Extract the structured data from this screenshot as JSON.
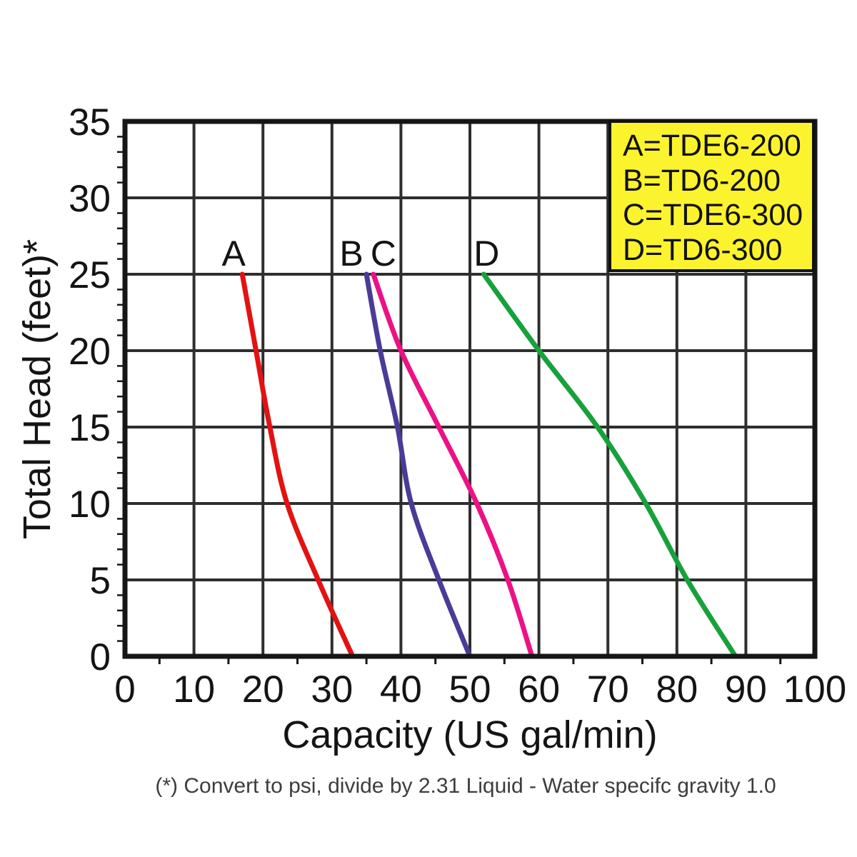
{
  "figure": {
    "footnote": "(*) Convert to psi, divide by 2.31  Liquid - Water specifc gravity 1.0"
  },
  "chart_data": {
    "type": "line",
    "title": "",
    "xlabel": "Capacity (US gal/min)",
    "ylabel": "Total Head (feet)*",
    "xlim": [
      0,
      100
    ],
    "ylim": [
      0,
      35
    ],
    "xticks": [
      0,
      10,
      20,
      30,
      40,
      50,
      60,
      70,
      80,
      90,
      100
    ],
    "yticks": [
      0,
      5,
      10,
      15,
      20,
      25,
      30,
      35
    ],
    "x_minor_step": 5,
    "y_minor_step": 1,
    "grid": true,
    "legend_position": "top-right",
    "legend": {
      "background": "#fcf32f",
      "border": "#111111",
      "entries": [
        {
          "key": "A",
          "label": "A=TDE6-200"
        },
        {
          "key": "B",
          "label": "B=TD6-200"
        },
        {
          "key": "C",
          "label": "C=TDE6-300"
        },
        {
          "key": "D",
          "label": "D=TD6-300"
        }
      ]
    },
    "series": [
      {
        "name": "A",
        "model": "TDE6-200",
        "color": "#e31212",
        "points": [
          [
            17,
            25
          ],
          [
            19,
            20
          ],
          [
            21,
            15
          ],
          [
            23.5,
            10
          ],
          [
            28,
            5
          ],
          [
            33,
            0
          ]
        ],
        "label_dx": -12
      },
      {
        "name": "B",
        "model": "TD6-200",
        "color": "#4a3b97",
        "points": [
          [
            35,
            25
          ],
          [
            37,
            20
          ],
          [
            39.5,
            15
          ],
          [
            41.5,
            10
          ],
          [
            45.5,
            5
          ],
          [
            50,
            0
          ]
        ],
        "label_dx": -21
      },
      {
        "name": "C",
        "model": "TDE6-300",
        "color": "#ec1185",
        "points": [
          [
            36,
            25
          ],
          [
            40,
            20
          ],
          [
            45.5,
            15
          ],
          [
            51,
            10
          ],
          [
            55.5,
            5
          ],
          [
            59,
            0
          ]
        ],
        "label_dx": 14
      },
      {
        "name": "D",
        "model": "TD6-300",
        "color": "#17a13b",
        "points": [
          [
            52,
            25
          ],
          [
            60,
            20
          ],
          [
            68.5,
            15
          ],
          [
            75.5,
            10
          ],
          [
            81.5,
            5
          ],
          [
            88.5,
            0
          ]
        ],
        "label_dx": 4
      }
    ],
    "colors": {
      "grid": "#2e2e2e",
      "border": "#161616",
      "axis_text": "#141414",
      "footnote_text": "#3d3d3d",
      "background": "#ffffff"
    }
  }
}
